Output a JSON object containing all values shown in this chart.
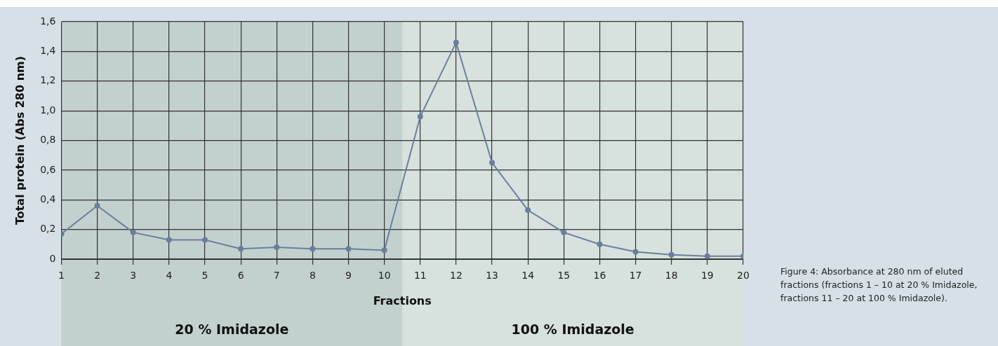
{
  "chart_data": {
    "type": "line",
    "xlabel": "Fractions",
    "ylabel": "Total protein (Abs 280 nm)",
    "x": [
      1,
      2,
      3,
      4,
      5,
      6,
      7,
      8,
      9,
      10,
      11,
      12,
      13,
      14,
      15,
      16,
      17,
      18,
      19,
      20
    ],
    "series": [
      {
        "color": "#6a7f9c",
        "values": [
          0.17,
          0.36,
          0.18,
          0.13,
          0.13,
          0.07,
          0.08,
          0.07,
          0.07,
          0.06,
          0.96,
          1.46,
          0.65,
          0.33,
          0.18,
          0.1,
          0.05,
          0.03,
          0.02,
          0.02
        ]
      }
    ],
    "xlim": [
      1,
      20
    ],
    "xticks": [
      1,
      2,
      3,
      4,
      5,
      6,
      7,
      8,
      9,
      10,
      11,
      12,
      13,
      14,
      15,
      16,
      17,
      18,
      19,
      20
    ],
    "ylim": [
      0,
      1.6
    ],
    "yticks": [
      0,
      {
        "value": 0.2,
        "label": "0,2"
      },
      {
        "value": 0.4,
        "label": "0,4"
      },
      {
        "value": 0.6,
        "label": "0,6"
      },
      {
        "value": 0.8,
        "label": "0,8"
      },
      {
        "value": 1.0,
        "label": "1,0"
      },
      {
        "value": 1.2,
        "label": "1,2"
      },
      {
        "value": 1.4,
        "label": "1,4"
      },
      {
        "value": 1.6,
        "label": "1,6"
      }
    ],
    "bands": [
      {
        "axis": "x",
        "from": 1,
        "to": 10.5,
        "label": "20 % Imidazole",
        "color": "#c3d1ce"
      },
      {
        "axis": "x",
        "from": 10.5,
        "to": 20,
        "label": "100 % Imidazole",
        "color": "#d7e1de"
      }
    ],
    "grid": true,
    "legend": false,
    "marker": "circle",
    "line_style": "solid",
    "annotations": [
      "Figure 4: Absorbance at 280 nm of eluted fractions (fractions 1 – 10 at 20 % Imidazole, fractions 11 – 20 at 100 % Imidazole)."
    ]
  }
}
